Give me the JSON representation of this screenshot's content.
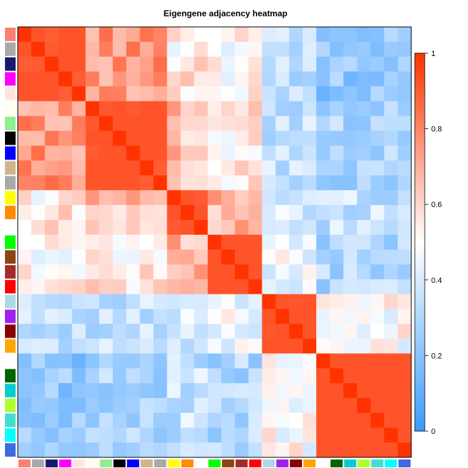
{
  "chart_data": {
    "type": "heatmap",
    "title": "Eigengene adjacency heatmap",
    "module_colors": [
      "salmon",
      "darkgrey",
      "midnightblue",
      "magenta",
      "mistyrose",
      "ivory",
      "lightgreen",
      "black",
      "blue",
      "tan",
      "darkgrey",
      "yellow",
      "darkorange",
      "white",
      "green",
      "saddlebrown",
      "brown",
      "red",
      "lightblue",
      "purple",
      "darkred",
      "orange",
      "white",
      "darkgreen",
      "darkturquoise",
      "greenyellow",
      "turquoise",
      "cyan",
      "royalblue"
    ],
    "module_hex": [
      "#fa8072",
      "#a9a9a9",
      "#191970",
      "#ff00ff",
      "#ffe4e1",
      "#fffff0",
      "#90ee90",
      "#000000",
      "#0000ff",
      "#d2b48c",
      "#a9a9a9",
      "#ffff00",
      "#ff8c00",
      "#ffffff",
      "#00ff00",
      "#8b4513",
      "#a52a2a",
      "#ff0000",
      "#add8e6",
      "#a020f0",
      "#8b0000",
      "#ffa500",
      "#ffffff",
      "#006400",
      "#00ced1",
      "#adff2f",
      "#40e0d0",
      "#00ffff",
      "#4169e1"
    ],
    "block_values": [
      [
        1.0,
        0.75,
        0.55,
        0.5,
        0.35,
        0.22
      ],
      [
        0.75,
        1.0,
        0.65,
        0.55,
        0.35,
        0.3
      ],
      [
        0.55,
        0.65,
        1.0,
        0.68,
        0.4,
        0.35
      ],
      [
        0.5,
        0.55,
        0.68,
        1.0,
        0.45,
        0.3
      ],
      [
        0.35,
        0.35,
        0.4,
        0.45,
        1.0,
        0.5
      ],
      [
        0.22,
        0.3,
        0.35,
        0.3,
        0.5,
        1.0
      ]
    ],
    "block_sizes": [
      5,
      6,
      3,
      4,
      4,
      7
    ],
    "value_range": [
      0,
      1
    ],
    "colorbar_ticks": [
      "0",
      "0.2",
      "0.4",
      "0.6",
      "0.8",
      "1"
    ],
    "colorbar_values": [
      0,
      0.2,
      0.4,
      0.6,
      0.8,
      1
    ],
    "colors": {
      "low": "#3c9bff",
      "mid": "#ffffff",
      "high": "#ff3300"
    },
    "grid": false,
    "legend": "right"
  }
}
